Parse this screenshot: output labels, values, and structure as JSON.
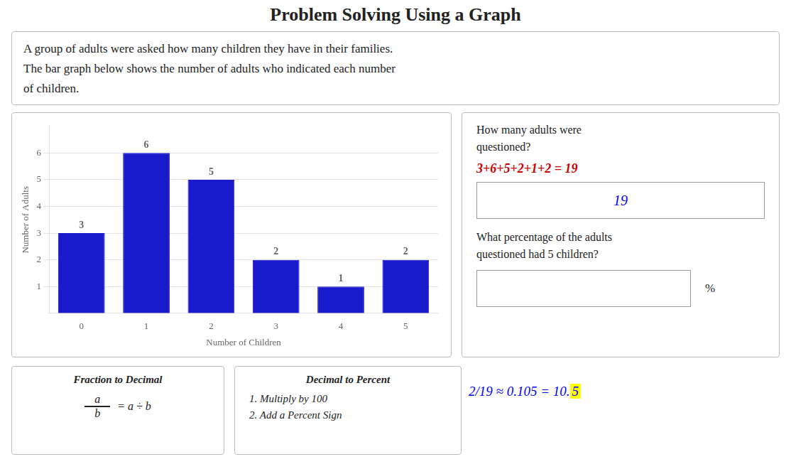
{
  "chart_data": {
    "type": "bar",
    "title": "Problem Solving Using a Graph",
    "categories": [
      "0",
      "1",
      "2",
      "3",
      "4",
      "5"
    ],
    "values": [
      3,
      6,
      5,
      2,
      1,
      2
    ],
    "color": "#1a1acd",
    "xlabel": "Number of Children",
    "ylabel": "Number of Adults",
    "ylim": [
      0,
      7
    ],
    "yticks": [
      1,
      2,
      3,
      4,
      5,
      6
    ],
    "grid": true,
    "data_labels": true,
    "annotations": [
      "A group of adults were asked how many children they have in their families.",
      "The bar graph below shows the number of adults who indicated each number",
      "of children.",
      "How many adults were",
      "questioned?",
      "3+6+5+2+1+2 = 19",
      "19",
      "What percentage of the adults",
      "questioned had 5 children?",
      "%",
      "2/19 ≈ 0.105 = 10.",
      "5",
      "Fraction to Decimal",
      "a",
      "b",
      "= a ÷ b",
      "Decimal to Percent",
      "1. Multiply by 100",
      "2. Add a Percent Sign"
    ]
  }
}
